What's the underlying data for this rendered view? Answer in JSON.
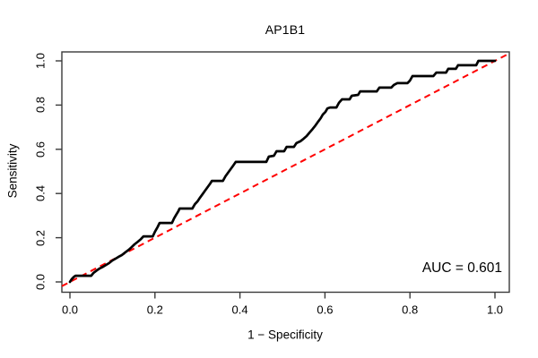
{
  "figure": {
    "background": "#ffffff",
    "frame_color": "#3a3a3a",
    "text_color": "#000000"
  },
  "chart_data": {
    "type": "line",
    "title": "AP1B1",
    "xlabel": "1 − Specificity",
    "ylabel": "Sensitivity",
    "annotation": "AUC = 0.601",
    "auc": 0.601,
    "xlim": [
      0,
      1
    ],
    "ylim": [
      0,
      1
    ],
    "grid": false,
    "legend_position": "none",
    "x_ticks": [
      0.0,
      0.2,
      0.4,
      0.6,
      0.8,
      1.0
    ],
    "x_tick_labels": [
      "0.0",
      "0.2",
      "0.4",
      "0.6",
      "0.8",
      "1.0"
    ],
    "y_ticks": [
      0.0,
      0.2,
      0.4,
      0.6,
      0.8,
      1.0
    ],
    "y_tick_labels": [
      "0.0",
      "0.2",
      "0.4",
      "0.6",
      "0.8",
      "1.0"
    ],
    "series": [
      {
        "name": "ROC curve",
        "color": "#000000",
        "style": "solid",
        "line_width": 2.7,
        "points": [
          [
            0.0,
            0.0
          ],
          [
            0.004,
            0.012
          ],
          [
            0.01,
            0.024
          ],
          [
            0.013,
            0.028
          ],
          [
            0.05,
            0.028
          ],
          [
            0.055,
            0.04
          ],
          [
            0.063,
            0.052
          ],
          [
            0.07,
            0.061
          ],
          [
            0.078,
            0.069
          ],
          [
            0.085,
            0.077
          ],
          [
            0.092,
            0.085
          ],
          [
            0.1,
            0.097
          ],
          [
            0.107,
            0.105
          ],
          [
            0.114,
            0.113
          ],
          [
            0.122,
            0.121
          ],
          [
            0.13,
            0.133
          ],
          [
            0.138,
            0.145
          ],
          [
            0.145,
            0.157
          ],
          [
            0.152,
            0.17
          ],
          [
            0.16,
            0.182
          ],
          [
            0.167,
            0.194
          ],
          [
            0.173,
            0.206
          ],
          [
            0.195,
            0.206
          ],
          [
            0.2,
            0.227
          ],
          [
            0.206,
            0.247
          ],
          [
            0.211,
            0.267
          ],
          [
            0.24,
            0.267
          ],
          [
            0.245,
            0.287
          ],
          [
            0.25,
            0.304
          ],
          [
            0.255,
            0.32
          ],
          [
            0.258,
            0.332
          ],
          [
            0.288,
            0.332
          ],
          [
            0.294,
            0.352
          ],
          [
            0.3,
            0.364
          ],
          [
            0.306,
            0.381
          ],
          [
            0.312,
            0.397
          ],
          [
            0.318,
            0.413
          ],
          [
            0.324,
            0.429
          ],
          [
            0.33,
            0.445
          ],
          [
            0.334,
            0.457
          ],
          [
            0.36,
            0.457
          ],
          [
            0.366,
            0.478
          ],
          [
            0.372,
            0.494
          ],
          [
            0.378,
            0.51
          ],
          [
            0.384,
            0.526
          ],
          [
            0.39,
            0.543
          ],
          [
            0.462,
            0.543
          ],
          [
            0.468,
            0.567
          ],
          [
            0.48,
            0.571
          ],
          [
            0.486,
            0.591
          ],
          [
            0.504,
            0.591
          ],
          [
            0.51,
            0.611
          ],
          [
            0.527,
            0.611
          ],
          [
            0.533,
            0.628
          ],
          [
            0.542,
            0.636
          ],
          [
            0.55,
            0.648
          ],
          [
            0.557,
            0.66
          ],
          [
            0.564,
            0.676
          ],
          [
            0.571,
            0.692
          ],
          [
            0.578,
            0.709
          ],
          [
            0.584,
            0.725
          ],
          [
            0.59,
            0.741
          ],
          [
            0.595,
            0.757
          ],
          [
            0.601,
            0.769
          ],
          [
            0.606,
            0.785
          ],
          [
            0.612,
            0.789
          ],
          [
            0.627,
            0.789
          ],
          [
            0.633,
            0.81
          ],
          [
            0.64,
            0.826
          ],
          [
            0.658,
            0.826
          ],
          [
            0.663,
            0.842
          ],
          [
            0.678,
            0.846
          ],
          [
            0.683,
            0.862
          ],
          [
            0.722,
            0.862
          ],
          [
            0.728,
            0.879
          ],
          [
            0.756,
            0.879
          ],
          [
            0.762,
            0.891
          ],
          [
            0.77,
            0.899
          ],
          [
            0.794,
            0.899
          ],
          [
            0.8,
            0.911
          ],
          [
            0.806,
            0.931
          ],
          [
            0.855,
            0.931
          ],
          [
            0.862,
            0.947
          ],
          [
            0.885,
            0.947
          ],
          [
            0.89,
            0.964
          ],
          [
            0.908,
            0.964
          ],
          [
            0.913,
            0.98
          ],
          [
            0.956,
            0.98
          ],
          [
            0.961,
            1.0
          ],
          [
            1.0,
            1.0
          ]
        ]
      },
      {
        "name": "Chance diagonal",
        "color": "#ff0000",
        "style": "dashed",
        "line_width": 2,
        "abline": {
          "intercept": 0,
          "slope": 1
        },
        "points": [
          [
            0,
            0
          ],
          [
            1,
            1
          ]
        ]
      }
    ]
  }
}
